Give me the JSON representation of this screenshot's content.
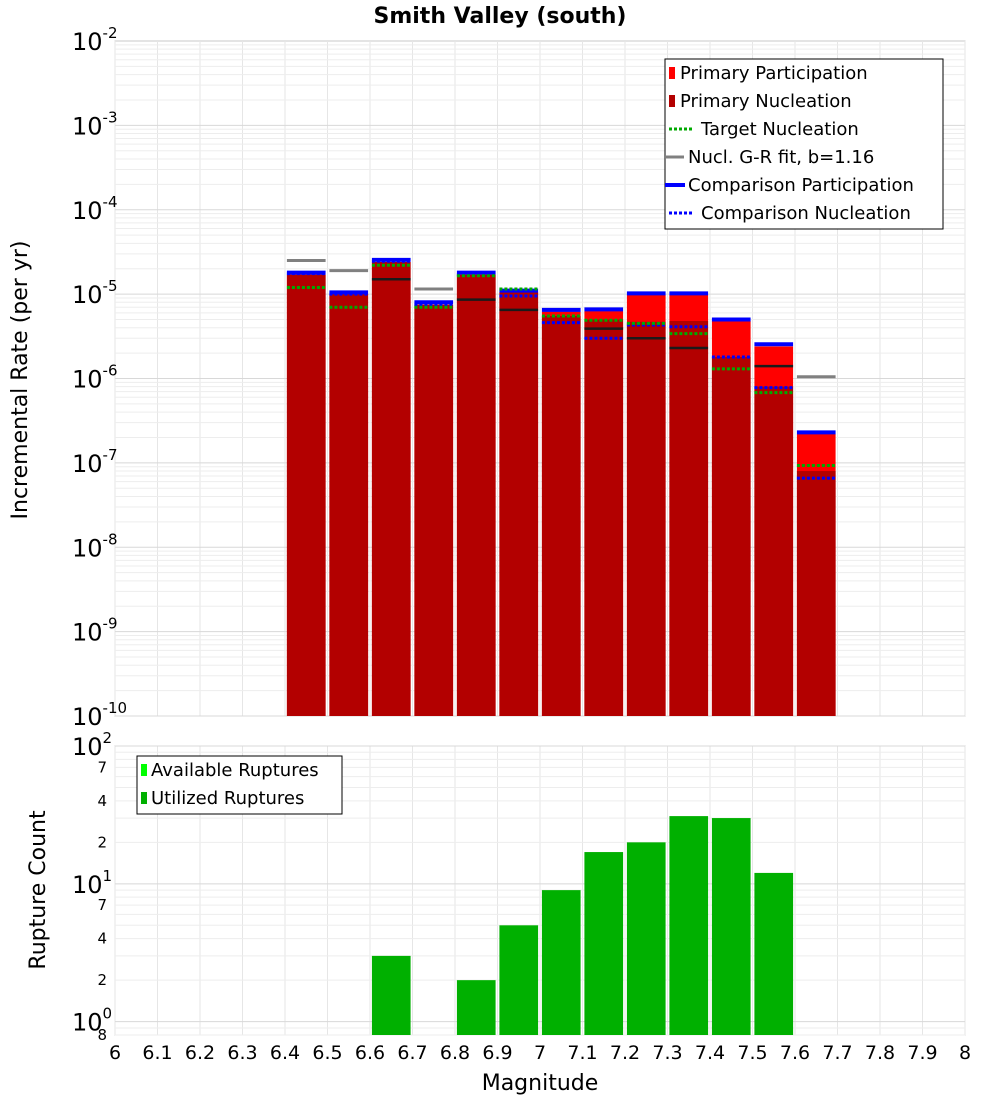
{
  "chart_data": [
    {
      "type": "bar",
      "title": "Smith Valley (south)",
      "ylabel": "Incremental Rate (per yr)",
      "xlabel": "",
      "y_scale": "log",
      "ylim": [
        1e-10,
        0.01
      ],
      "xlim": [
        6.0,
        8.0
      ],
      "grid": true,
      "legend_position": "top-right",
      "y_ticks": [
        {
          "base": "10",
          "exp": "-2"
        },
        {
          "base": "10",
          "exp": "-3"
        },
        {
          "base": "10",
          "exp": "-4"
        },
        {
          "base": "10",
          "exp": "-5"
        },
        {
          "base": "10",
          "exp": "-6"
        },
        {
          "base": "10",
          "exp": "-7"
        },
        {
          "base": "10",
          "exp": "-8"
        },
        {
          "base": "10",
          "exp": "-9"
        },
        {
          "base": "10",
          "exp": "-10"
        }
      ],
      "legend": [
        {
          "label": "Primary Participation",
          "color": "#ff0000",
          "style": "box"
        },
        {
          "label": "Primary Nucleation",
          "color": "#b30000",
          "style": "box"
        },
        {
          "label": "Target Nucleation",
          "color": "#00aa00",
          "style": "dotted"
        },
        {
          "label": "Nucl. G-R fit, b=1.16",
          "color": "#808080",
          "style": "solid"
        },
        {
          "label": "Comparison Participation",
          "color": "#0000ff",
          "style": "thick"
        },
        {
          "label": "Comparison Nucleation",
          "color": "#0000ff",
          "style": "dotted"
        }
      ],
      "x": [
        6.45,
        6.55,
        6.65,
        6.75,
        6.85,
        6.95,
        7.05,
        7.15,
        7.25,
        7.35,
        7.45,
        7.55,
        7.65
      ],
      "series": [
        {
          "name": "Primary Participation",
          "color": "#ff0000",
          "values": [
            1.7e-05,
            1e-05,
            2.4e-05,
            7.5e-06,
            1.7e-05,
            1.05e-05,
            6.2e-06,
            6.3e-06,
            9.8e-06,
            9.8e-06,
            4.8e-06,
            2.4e-06,
            2.2e-07
          ]
        },
        {
          "name": "Primary Nucleation",
          "color": "#b30000",
          "values": [
            1.7e-05,
            1e-05,
            2.4e-05,
            7.5e-06,
            1.7e-05,
            1.05e-05,
            5.5e-06,
            5e-06,
            4.7e-06,
            4.8e-06,
            1.8e-06,
            8e-07,
            8e-08
          ]
        },
        {
          "name": "Target Nucleation",
          "color": "#00aa00",
          "values": [
            1.2e-05,
            7e-06,
            2.2e-05,
            7e-06,
            1.65e-05,
            1.15e-05,
            5.5e-06,
            4.9e-06,
            4.5e-06,
            3.4e-06,
            1.3e-06,
            6.8e-07,
            9.3e-08
          ]
        },
        {
          "name": "Nucl. G-R fit, b=1.16",
          "color": "#808080",
          "values": [
            2.5e-05,
            1.9e-05,
            null,
            1.15e-05,
            null,
            null,
            null,
            null,
            null,
            null,
            null,
            null,
            1.05e-06
          ]
        },
        {
          "name": "Comparison Participation",
          "color": "#0000ff",
          "values": [
            1.8e-05,
            1.05e-05,
            2.55e-05,
            8e-06,
            1.8e-05,
            1.1e-05,
            6.5e-06,
            6.6e-06,
            1.02e-05,
            1.02e-05,
            5e-06,
            2.55e-06,
            2.3e-07
          ]
        },
        {
          "name": "Comparison Nucleation",
          "color": "#0000ff",
          "values": [
            1.75e-05,
            1e-05,
            2.45e-05,
            7.5e-06,
            1.7e-05,
            9.5e-06,
            4.6e-06,
            3e-06,
            4.3e-06,
            4.1e-06,
            1.8e-06,
            7.8e-07,
            6.6e-08
          ]
        }
      ],
      "extra_marks": {
        "name": "nucleation-fit-dark",
        "color": "#1a1a1a",
        "values": [
          null,
          null,
          1.5e-05,
          null,
          8.6e-06,
          6.5e-06,
          null,
          3.9e-06,
          3e-06,
          2.3e-06,
          null,
          1.4e-06,
          null
        ]
      }
    },
    {
      "type": "bar",
      "title": "",
      "ylabel": "Rupture Count",
      "xlabel": "Magnitude",
      "y_scale": "log",
      "ylim": [
        0.8,
        100
      ],
      "xlim": [
        6.0,
        8.0
      ],
      "grid": true,
      "legend_position": "top-left",
      "x_tick_labels": [
        "6",
        "6.1",
        "6.2",
        "6.3",
        "6.4",
        "6.5",
        "6.6",
        "6.7",
        "6.8",
        "6.9",
        "7",
        "7.1",
        "7.2",
        "7.3",
        "7.4",
        "7.5",
        "7.6",
        "7.7",
        "7.8",
        "7.9",
        "8"
      ],
      "y_major_ticks": [
        {
          "base": "10",
          "exp": "2"
        },
        {
          "base": "10",
          "exp": "1"
        },
        {
          "base": "10",
          "exp": "0"
        }
      ],
      "y_minor_ticks": [
        "7",
        "4",
        "2",
        "7",
        "4",
        "2",
        "8"
      ],
      "legend": [
        {
          "label": "Available Ruptures",
          "color": "#00ff00",
          "style": "box"
        },
        {
          "label": "Utilized Ruptures",
          "color": "#00b000",
          "style": "box"
        }
      ],
      "x": [
        6.65,
        6.85,
        6.95,
        7.05,
        7.15,
        7.25,
        7.35,
        7.45,
        7.55
      ],
      "series": [
        {
          "name": "Utilized Ruptures",
          "color": "#00b000",
          "values": [
            3,
            2,
            5,
            9,
            17,
            20,
            31,
            30,
            12
          ]
        }
      ]
    }
  ]
}
